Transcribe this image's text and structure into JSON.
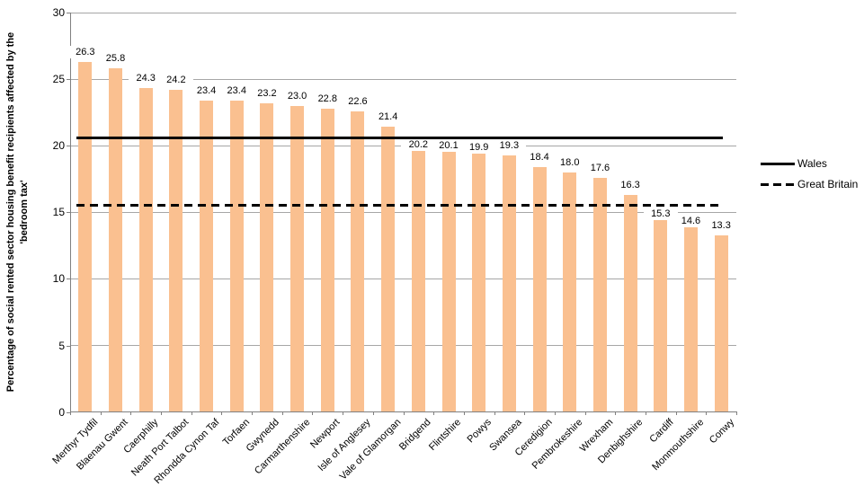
{
  "chart_data": {
    "type": "bar",
    "title": "",
    "xlabel": "",
    "ylabel": "Percentage of social rented sector housing benefit recipients affected by the 'bedroom tax'",
    "ylabel_lines": [
      "Percentage of social rented sector housing benefit recipients affected by the",
      "'bedroom tax'"
    ],
    "categories": [
      "Merthyr Tydfil",
      "Blaenau Gwent",
      "Caerphilly",
      "Neath Port Talbot",
      "Rhondda Cynon Taf",
      "Torfaen",
      "Gwynedd",
      "Carmarthenshire",
      "Newport",
      "Isle of Anglesey",
      "Vale of Glamorgan",
      "Bridgend",
      "Flintshire",
      "Powys",
      "Swansea",
      "Ceredigion",
      "Pembrokeshire",
      "Wrexham",
      "Denbighshire",
      "Cardiff",
      "Monmouthshire",
      "Conwy"
    ],
    "values": [
      26.3,
      25.8,
      24.3,
      24.2,
      23.4,
      23.4,
      23.2,
      23.0,
      22.8,
      22.6,
      21.4,
      20.2,
      20.1,
      19.9,
      19.3,
      18.4,
      18.0,
      17.6,
      16.3,
      15.3,
      14.6,
      13.3
    ],
    "value_labels": [
      "26.3",
      "25.8",
      "24.3",
      "24.2",
      "23.4",
      "23.4",
      "23.2",
      "23.0",
      "22.8",
      "22.6",
      "21.4",
      "20.2",
      "20.1",
      "19.9",
      "19.3",
      "18.4",
      "18.0",
      "17.6",
      "16.3",
      "15.3",
      "14.6",
      "13.3"
    ],
    "ylim": [
      0,
      30
    ],
    "yticks": [
      0,
      5,
      10,
      15,
      20,
      25,
      30
    ],
    "grid": true,
    "bar_color": "#fac090",
    "reference_lines": [
      {
        "name": "Wales",
        "value": 20.6,
        "style": "solid",
        "color": "#000000"
      },
      {
        "name": "Great Britain",
        "value": 15.5,
        "style": "dashed",
        "color": "#000000"
      }
    ],
    "legend_position": "right"
  },
  "legend": {
    "entries": [
      {
        "label": "Wales",
        "line_style": "solid"
      },
      {
        "label": "Great Britain",
        "line_style": "dashed"
      }
    ]
  },
  "colors": {
    "bar": "#fac090",
    "gridline": "#a6a6a6",
    "axis": "#808080",
    "text": "#000000",
    "background": "#ffffff"
  }
}
